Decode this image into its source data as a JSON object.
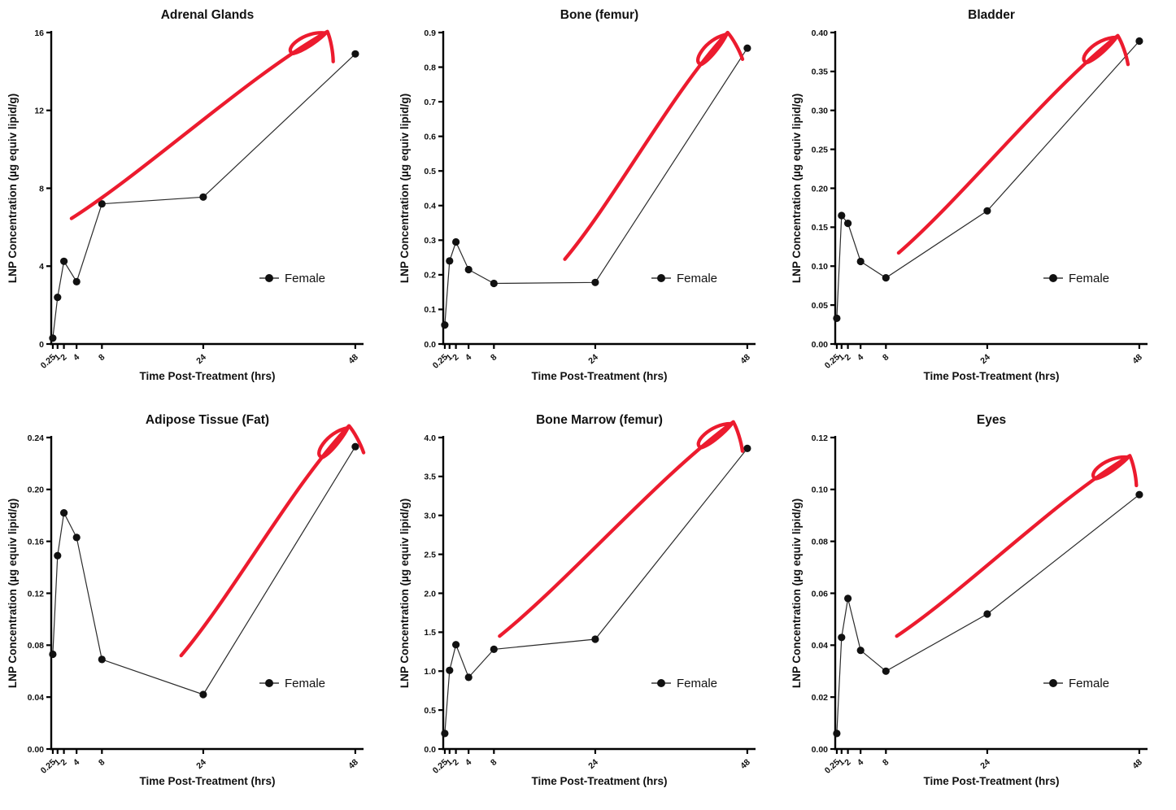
{
  "figure": {
    "background": "#ffffff",
    "series_color": "#111111",
    "axis_color": "#000000",
    "annotation_color": "#ec1b2e",
    "legend_label": "Female"
  },
  "chart_data": {
    "type": "line",
    "layout": "2 rows x 3 columns, one series per panel, hand-drawn red up-arrow annotation on each panel",
    "xlabel": "Time Post-Treatment (hrs)",
    "ylabel": "LNP Concentration (µg equiv lipid/g)",
    "x": [
      0.25,
      1,
      2,
      4,
      8,
      24,
      48
    ],
    "x_tick_labels": [
      "0.25",
      "1",
      "2",
      "4",
      "8",
      "24",
      "48"
    ],
    "x_range": [
      0,
      49.3
    ],
    "x_axis_scale": "linear",
    "grid": "off",
    "legend": {
      "label": "Female",
      "marker": "filled-circle-on-line",
      "position": "inside-right"
    },
    "panels": [
      {
        "title": "Adrenal Glands",
        "ylim": [
          0,
          16
        ],
        "yticks": [
          0,
          4,
          8,
          12,
          16
        ],
        "ytick_labels": [
          "0",
          "4",
          "8",
          "12",
          "16"
        ],
        "values": [
          0.3,
          2.4,
          4.25,
          3.2,
          7.2,
          7.55,
          14.9
        ],
        "arrow": {
          "from": [
            3.2,
            6.45
          ],
          "to": [
            43.6,
            16.05
          ]
        }
      },
      {
        "title": "Bone (femur)",
        "ylim": [
          0,
          0.9
        ],
        "yticks": [
          0,
          0.1,
          0.2,
          0.3,
          0.4,
          0.5,
          0.6,
          0.7,
          0.8,
          0.9
        ],
        "ytick_labels": [
          "0.0",
          "0.1",
          "0.2",
          "0.3",
          "0.4",
          "0.5",
          "0.6",
          "0.7",
          "0.8",
          "0.9"
        ],
        "values": [
          0.055,
          0.24,
          0.295,
          0.215,
          0.175,
          0.178,
          0.855
        ],
        "arrow": {
          "from": [
            19.2,
            0.245
          ],
          "to": [
            44.9,
            0.9
          ]
        }
      },
      {
        "title": "Bladder",
        "ylim": [
          0,
          0.4
        ],
        "yticks": [
          0,
          0.05,
          0.1,
          0.15,
          0.2,
          0.25,
          0.3,
          0.35,
          0.4
        ],
        "ytick_labels": [
          "0.00",
          "0.05",
          "0.10",
          "0.15",
          "0.20",
          "0.25",
          "0.30",
          "0.35",
          "0.40"
        ],
        "values": [
          0.033,
          0.165,
          0.155,
          0.106,
          0.085,
          0.171,
          0.389
        ],
        "arrow": {
          "from": [
            10.0,
            0.117
          ],
          "to": [
            44.6,
            0.396
          ]
        }
      },
      {
        "title": "Adipose Tissue (Fat)",
        "ylim": [
          0,
          0.24
        ],
        "yticks": [
          0,
          0.04,
          0.08,
          0.12,
          0.16,
          0.2,
          0.24
        ],
        "ytick_labels": [
          "0.00",
          "0.04",
          "0.08",
          "0.12",
          "0.16",
          "0.20",
          "0.24"
        ],
        "values": [
          0.073,
          0.149,
          0.182,
          0.163,
          0.069,
          0.042,
          0.233
        ],
        "arrow": {
          "from": [
            20.5,
            0.072
          ],
          "to": [
            47.0,
            0.249
          ]
        }
      },
      {
        "title": "Bone Marrow (femur)",
        "ylim": [
          0,
          4
        ],
        "yticks": [
          0,
          0.5,
          1,
          1.5,
          2,
          2.5,
          3,
          3.5,
          4
        ],
        "ytick_labels": [
          "0.0",
          "0.5",
          "1.0",
          "1.5",
          "2.0",
          "2.5",
          "3.0",
          "3.5",
          "4.0"
        ],
        "values": [
          0.2,
          1.01,
          1.34,
          0.92,
          1.28,
          1.41,
          3.86
        ],
        "arrow": {
          "from": [
            8.9,
            1.45
          ],
          "to": [
            45.8,
            4.2
          ]
        }
      },
      {
        "title": "Eyes",
        "ylim": [
          0,
          0.12
        ],
        "yticks": [
          0,
          0.02,
          0.04,
          0.06,
          0.08,
          0.1,
          0.12
        ],
        "ytick_labels": [
          "0.00",
          "0.02",
          "0.04",
          "0.06",
          "0.08",
          "0.10",
          "0.12"
        ],
        "values": [
          0.006,
          0.043,
          0.058,
          0.038,
          0.03,
          0.052,
          0.098
        ],
        "arrow": {
          "from": [
            9.7,
            0.0435
          ],
          "to": [
            46.5,
            0.113
          ]
        }
      }
    ]
  }
}
